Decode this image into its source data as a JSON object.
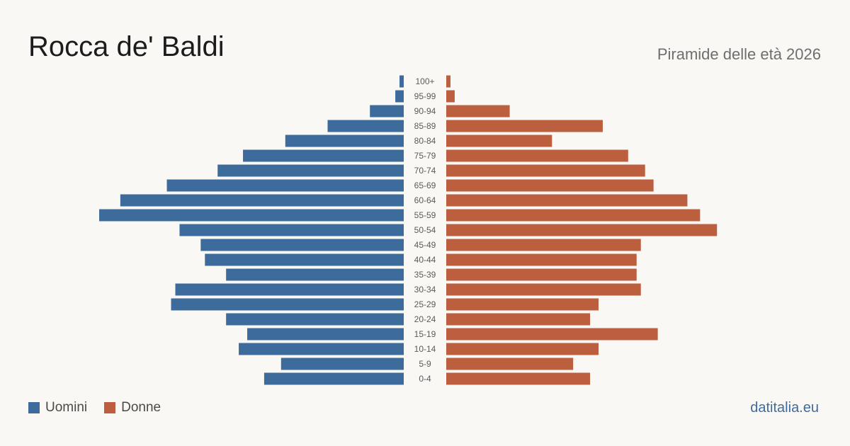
{
  "header": {
    "title": "Rocca de' Baldi",
    "subtitle": "Piramide delle età 2026"
  },
  "legend": {
    "men_label": "Uomini",
    "women_label": "Donne"
  },
  "source": {
    "label": "datitalia.eu"
  },
  "colors": {
    "men": "#3d6b9c",
    "women": "#bb5f3e",
    "background": "#f9f8f4",
    "age_label": "#5a5a5a"
  },
  "chart_data": {
    "type": "bar",
    "orientation": "horizontal-pyramid",
    "categories": [
      "100+",
      "95-99",
      "90-94",
      "85-89",
      "80-84",
      "75-79",
      "70-74",
      "65-69",
      "60-64",
      "55-59",
      "50-54",
      "45-49",
      "40-44",
      "35-39",
      "30-34",
      "25-29",
      "20-24",
      "15-19",
      "10-14",
      "5-9",
      "0-4"
    ],
    "series": [
      {
        "name": "Uomini",
        "values": [
          1,
          2,
          8,
          18,
          28,
          38,
          44,
          56,
          67,
          72,
          53,
          48,
          47,
          42,
          54,
          55,
          42,
          37,
          39,
          29,
          33
        ]
      },
      {
        "name": "Donne",
        "values": [
          1,
          2,
          15,
          37,
          25,
          43,
          47,
          49,
          57,
          60,
          64,
          46,
          45,
          45,
          46,
          36,
          34,
          50,
          36,
          30,
          34
        ]
      }
    ],
    "xlim": [
      0,
      72
    ],
    "grid": false,
    "legend_position": "bottom-left"
  }
}
